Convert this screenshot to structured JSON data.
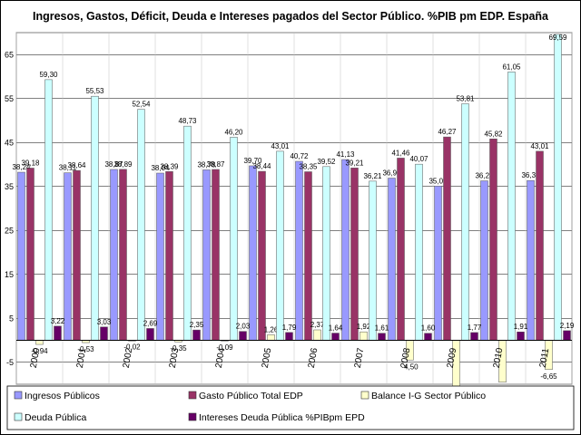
{
  "chart_data": {
    "type": "bar",
    "title": "Ingresos, Gastos, Déficit, Deuda e Intereses pagados del Sector Público. %PIB pm EDP. España",
    "xlabel": "",
    "ylabel": "",
    "categories": [
      "2000",
      "2001",
      "2002",
      "2003",
      "2004",
      "2005",
      "2006",
      "2007",
      "2008",
      "2009",
      "2010",
      "2011"
    ],
    "ylim": [
      -10,
      70
    ],
    "yticks": [
      -5,
      5,
      15,
      25,
      35,
      45,
      55,
      65
    ],
    "ytick_labels": [
      "-5",
      "5",
      "15",
      "25",
      "35",
      "45",
      "55",
      "65"
    ],
    "grid": true,
    "legend_position": "bottom",
    "series": [
      {
        "name": "Ingresos Públicos",
        "color": "#9999ff",
        "values": [
          38.24,
          38.11,
          38.87,
          38.04,
          38.78,
          39.7,
          40.72,
          41.13,
          36.9,
          35.09,
          36.28,
          36.36
        ],
        "labels": [
          "38,24",
          "38,11",
          "38,87",
          "38,04",
          "38,78",
          "39,70",
          "40,72",
          "41,13",
          "36,90",
          "35,09",
          "36,28",
          "36,36"
        ]
      },
      {
        "name": "Gasto Público Total  EDP",
        "color": "#993366",
        "values": [
          39.18,
          38.64,
          38.89,
          38.39,
          38.87,
          38.44,
          38.35,
          39.21,
          41.46,
          46.27,
          45.82,
          43.01
        ],
        "labels": [
          "39,18",
          "38,64",
          "38,89",
          "38,39",
          "38,87",
          "38,44",
          "38,35",
          "39,21",
          "41,46",
          "46,27",
          "45,82",
          "43,01"
        ]
      },
      {
        "name": "Balance I-G Sector Público",
        "color": "#ffffcc",
        "values": [
          -0.94,
          -0.53,
          -0.02,
          -0.35,
          -0.09,
          1.26,
          2.37,
          1.92,
          -4.5,
          -11.11,
          -9.54,
          -6.65
        ],
        "labels": [
          "-0,94",
          "-0,53",
          "-0,02",
          "-0,35",
          "-0,09",
          "1,26",
          "2,37",
          "1,92",
          "-4,50",
          "",
          "",
          "-6,65"
        ]
      },
      {
        "name": "Deuda Pública",
        "color": "#ccffff",
        "values": [
          59.3,
          55.53,
          52.54,
          48.73,
          46.2,
          43.01,
          39.52,
          36.21,
          40.07,
          53.81,
          61.05,
          69.59
        ],
        "labels": [
          "59,30",
          "55,53",
          "52,54",
          "48,73",
          "46,20",
          "43,01",
          "39,52",
          "36,21",
          "40,07",
          "53,81",
          "61,05",
          "69,59"
        ]
      },
      {
        "name": "Intereses Deuda Pública %PIBpm EPD",
        "color": "#660066",
        "values": [
          3.22,
          3.03,
          2.69,
          2.35,
          2.03,
          1.79,
          1.64,
          1.61,
          1.6,
          1.77,
          1.91,
          2.19
        ],
        "labels": [
          "3,22",
          "3,03",
          "2,69",
          "2,35",
          "2,03",
          "1,79",
          "1,64",
          "1,61",
          "1,60",
          "1,77",
          "1,91",
          "2,19"
        ]
      }
    ]
  }
}
